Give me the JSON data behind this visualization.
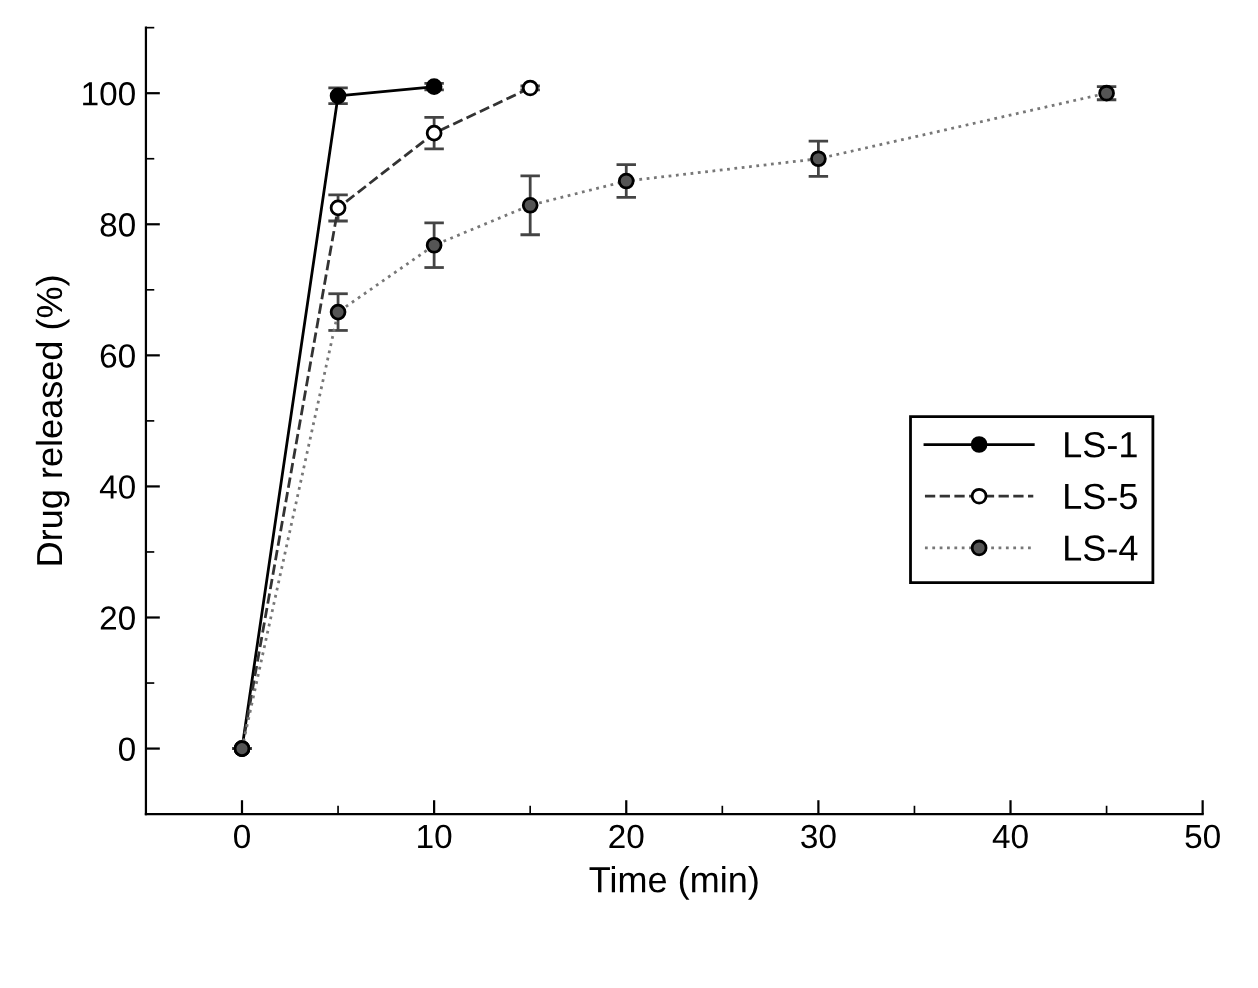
{
  "chart_data": {
    "type": "line",
    "xlabel": "Time (min)",
    "ylabel": "Drug released (%)",
    "xlim": [
      -5,
      50
    ],
    "xticks": [
      0,
      10,
      20,
      30,
      40,
      50
    ],
    "ylim": [
      -10,
      110
    ],
    "yticks": [
      0,
      20,
      40,
      60,
      80,
      100
    ],
    "grid": false,
    "legend": "right",
    "marker": "circle",
    "series": [
      {
        "name": "LS-1",
        "color": "#000000",
        "line_style": "solid",
        "x": [
          0,
          5,
          10
        ],
        "values": [
          0,
          99.6,
          101.0
        ],
        "errors": [
          null,
          1.2,
          0.5
        ]
      },
      {
        "name": "LS-5",
        "color": "#333333",
        "line_style": "dashed",
        "x": [
          0,
          5,
          10,
          15
        ],
        "values": [
          0,
          82.5,
          93.9,
          100.8
        ],
        "errors": [
          null,
          2.0,
          2.4,
          0.3
        ]
      },
      {
        "name": "LS-4",
        "color": "#777777",
        "line_style": "dotted",
        "x": [
          0,
          5,
          10,
          15,
          20,
          30,
          45
        ],
        "values": [
          0,
          66.6,
          76.8,
          82.9,
          86.6,
          90.0,
          100.0
        ],
        "errors": [
          null,
          2.8,
          3.4,
          4.5,
          2.5,
          2.7,
          1.0
        ]
      }
    ]
  }
}
